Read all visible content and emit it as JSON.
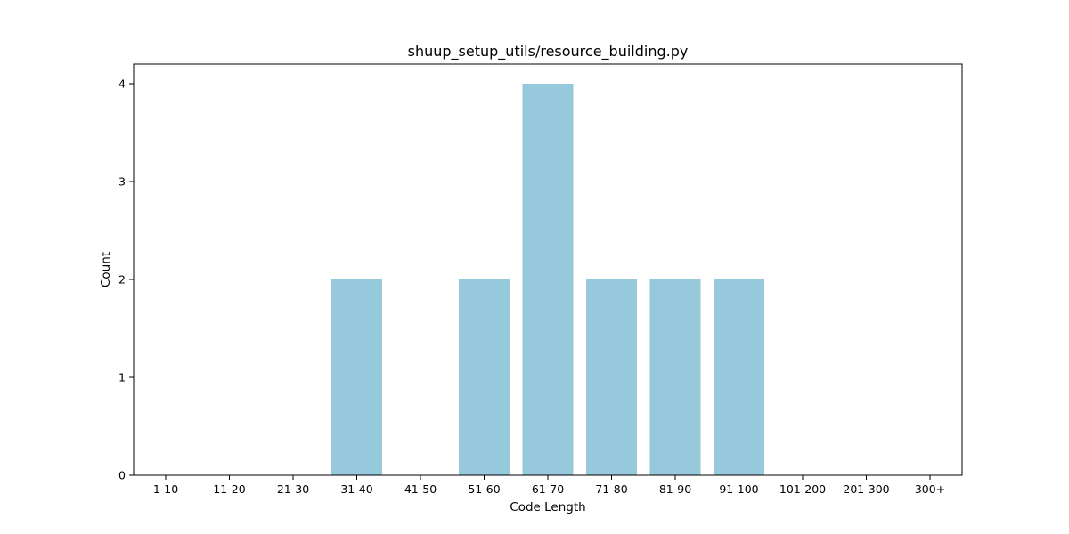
{
  "chart_data": {
    "type": "bar",
    "title": "shuup_setup_utils/resource_building.py",
    "xlabel": "Code Length",
    "ylabel": "Count",
    "categories": [
      "1-10",
      "11-20",
      "21-30",
      "31-40",
      "41-50",
      "51-60",
      "61-70",
      "71-80",
      "81-90",
      "91-100",
      "101-200",
      "201-300",
      "300+"
    ],
    "values": [
      0,
      0,
      0,
      2,
      0,
      2,
      4,
      2,
      2,
      2,
      0,
      0,
      0
    ],
    "ylim": [
      0,
      4.2
    ],
    "yticks": [
      "0",
      "1",
      "2",
      "3",
      "4"
    ],
    "bar_color": "#96c9dc",
    "grid": false,
    "legend": "none"
  }
}
